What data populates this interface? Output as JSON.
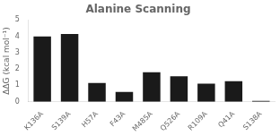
{
  "chart_data": {
    "type": "bar",
    "title": "Alanine Scanning",
    "ylabel": "ΔΔG (kcal mol⁻¹)",
    "categories": [
      "K136A",
      "S139A",
      "H57A",
      "F43A",
      "M485A",
      "Q526A",
      "R109A",
      "Q41A",
      "S138A"
    ],
    "values": [
      4.0,
      4.15,
      1.15,
      0.6,
      1.8,
      1.55,
      1.1,
      1.25,
      0.05
    ],
    "color": "#1a1a1a",
    "ylim": [
      0,
      5
    ],
    "yticks": [
      0,
      1,
      2,
      3,
      4,
      5
    ],
    "grid": false
  }
}
